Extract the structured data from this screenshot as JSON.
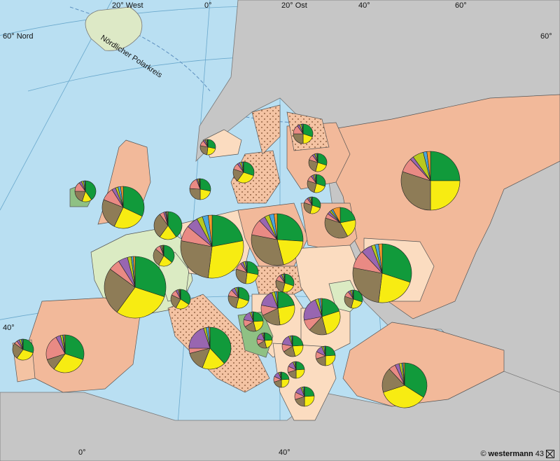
{
  "map": {
    "graticule_labels": {
      "lon_20w": "20° West",
      "lon_0_top": "0°",
      "lon_20e": "20° Ost",
      "lon_40_top": "40°",
      "lon_60_top": "60°",
      "lat_60_left": "60° Nord",
      "lat_60_right": "60°",
      "lat_40_left": "40°",
      "lon_0_bottom": "0°",
      "lon_40_bottom": "40°"
    },
    "arctic_circle_label": "Nördlicher Polarkreis",
    "credit": {
      "symbol": "©",
      "publisher": "westermann",
      "number": "43"
    },
    "colors": {
      "sea": "#b9dff2",
      "land_gray": "#c6c6c6",
      "salmon": "#f2b99a",
      "peach": "#fbdcc0",
      "light_green": "#dbebc3",
      "mid_green": "#8fc184",
      "border": "#4a4a4a",
      "graticule": "#6aa8cc"
    },
    "pie_colors": {
      "green": "#119a3b",
      "yellow": "#f7ec12",
      "brown": "#8e7c57",
      "pink": "#e98a84",
      "purple": "#9866b1",
      "olive": "#b8c920",
      "blue": "#4aa6dc",
      "orange": "#f29a2b"
    }
  }
}
